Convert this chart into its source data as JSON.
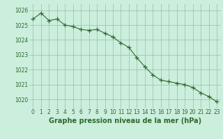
{
  "x": [
    0,
    1,
    2,
    3,
    4,
    5,
    6,
    7,
    8,
    9,
    10,
    11,
    12,
    13,
    14,
    15,
    16,
    17,
    18,
    19,
    20,
    21,
    22,
    23
  ],
  "y": [
    1025.4,
    1025.8,
    1025.3,
    1025.4,
    1025.0,
    1024.9,
    1024.7,
    1024.65,
    1024.7,
    1024.45,
    1024.2,
    1023.8,
    1023.5,
    1022.8,
    1022.2,
    1021.65,
    1021.3,
    1021.2,
    1021.1,
    1021.0,
    1020.8,
    1020.45,
    1020.2,
    1019.85
  ],
  "line_color": "#2d6a2d",
  "marker": "+",
  "marker_size": 4,
  "marker_color": "#2d6a2d",
  "bg_color": "#cceedd",
  "grid_color": "#99bbaa",
  "xlabel": "Graphe pression niveau de la mer (hPa)",
  "xlabel_fontsize": 7,
  "xlabel_color": "#2d6a2d",
  "ylabel_ticks": [
    1020,
    1021,
    1022,
    1023,
    1024,
    1025,
    1026
  ],
  "xlim": [
    -0.5,
    23.5
  ],
  "ylim": [
    1019.4,
    1026.4
  ],
  "xtick_labels": [
    "0",
    "1",
    "2",
    "3",
    "4",
    "5",
    "6",
    "7",
    "8",
    "9",
    "10",
    "11",
    "12",
    "13",
    "14",
    "15",
    "16",
    "17",
    "18",
    "19",
    "20",
    "21",
    "22",
    "23"
  ],
  "tick_fontsize": 5.5,
  "tick_color": "#2d6a2d"
}
